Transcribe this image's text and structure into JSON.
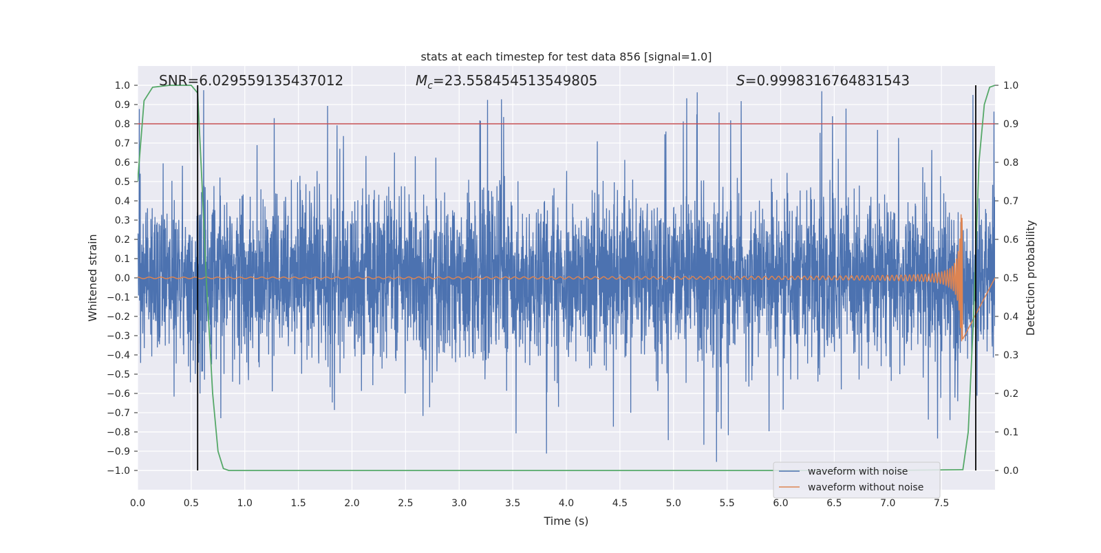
{
  "chart_data": {
    "type": "line",
    "title": "stats at each timestep for test data 856 [signal=1.0]",
    "xlabel": "Time (s)",
    "ylabel": "Whitened strain",
    "y2label": "Detection probability",
    "xlim": [
      0.0,
      8.0
    ],
    "ylim": [
      -1.1,
      1.1
    ],
    "y2lim": [
      -0.05,
      1.05
    ],
    "xticks": [
      "0.0",
      "0.5",
      "1.0",
      "1.5",
      "2.0",
      "2.5",
      "3.0",
      "3.5",
      "4.0",
      "4.5",
      "5.0",
      "5.5",
      "6.0",
      "6.5",
      "7.0",
      "7.5"
    ],
    "xtick_values": [
      0,
      0.5,
      1,
      1.5,
      2,
      2.5,
      3,
      3.5,
      4,
      4.5,
      5,
      5.5,
      6,
      6.5,
      7,
      7.5
    ],
    "yticks": [
      "1.0",
      "0.9",
      "0.8",
      "0.7",
      "0.6",
      "0.5",
      "0.4",
      "0.3",
      "0.2",
      "0.1",
      "0.0",
      "−0.1",
      "−0.2",
      "−0.3",
      "−0.4",
      "−0.5",
      "−0.6",
      "−0.7",
      "−0.8",
      "−0.9",
      "−1.0"
    ],
    "ytick_values": [
      1.0,
      0.9,
      0.8,
      0.7,
      0.6,
      0.5,
      0.4,
      0.3,
      0.2,
      0.1,
      0.0,
      -0.1,
      -0.2,
      -0.3,
      -0.4,
      -0.5,
      -0.6,
      -0.7,
      -0.8,
      -0.9,
      -1.0
    ],
    "y2ticks": [
      "1.0",
      "0.9",
      "0.8",
      "0.7",
      "0.6",
      "0.5",
      "0.4",
      "0.3",
      "0.2",
      "0.1",
      "0.0"
    ],
    "y2tick_values": [
      1.0,
      0.9,
      0.8,
      0.7,
      0.6,
      0.5,
      0.4,
      0.3,
      0.2,
      0.1,
      0.0
    ],
    "annotations": {
      "snr": "SNR=6.029559135437012",
      "mc_symbol": "M",
      "mc_sub": "c",
      "mc_value": "=23.558454513549805",
      "s_symbol": "S",
      "s_value": "=0.9998316764831543"
    },
    "threshold": {
      "y": 0.9,
      "color": "#c44e52"
    },
    "vlines": [
      0.56,
      7.82
    ],
    "legend": {
      "position": "lower-right",
      "entries": [
        "waveform with noise",
        "waveform without noise"
      ]
    },
    "series": [
      {
        "name": "waveform with noise",
        "color": "#4c72b0",
        "noise_std": 0.22,
        "x_range": [
          0.0,
          8.0
        ]
      },
      {
        "name": "waveform without noise",
        "color": "#dd8452",
        "chirp_end": 7.7,
        "peak_amp": 0.33,
        "start_amp": 0.004
      },
      {
        "name": "detection probability",
        "color": "#55a868",
        "x": [
          0.0,
          0.06,
          0.14,
          0.3,
          0.46,
          0.5,
          0.56,
          0.6,
          0.64,
          0.7,
          0.75,
          0.8,
          0.85,
          1.0,
          7.0,
          7.7,
          7.75,
          7.8,
          7.85,
          7.9,
          7.95,
          8.0
        ],
        "y": [
          0.75,
          0.96,
          0.995,
          1.0,
          1.0,
          1.0,
          0.98,
          0.75,
          0.5,
          0.2,
          0.05,
          0.005,
          0.0,
          0.0,
          0.0,
          0.002,
          0.1,
          0.4,
          0.8,
          0.95,
          0.995,
          1.0
        ]
      }
    ]
  }
}
